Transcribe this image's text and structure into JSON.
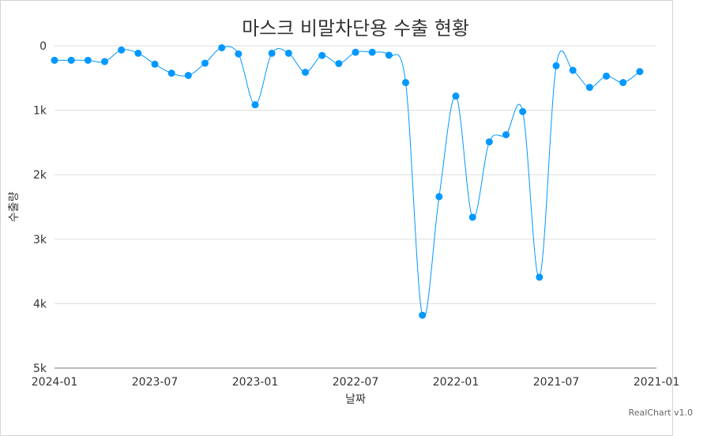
{
  "chart_data": {
    "type": "line",
    "title": "마스크 비말차단용 수출 현황",
    "xlabel": "날짜",
    "ylabel": "수출량",
    "x_tick_labels": [
      "2024-01",
      "2023-07",
      "2023-01",
      "2022-07",
      "2022-01",
      "2021-07",
      "2021-01"
    ],
    "y_tick_labels": [
      "0",
      "1k",
      "2k",
      "3k",
      "4k",
      "5k"
    ],
    "ylim": [
      0,
      5000
    ],
    "y_reversed": true,
    "x_reversed": true,
    "x_range": [
      "2024-01",
      "2021-01"
    ],
    "grid": true,
    "legend": "none",
    "series": [
      {
        "color": "#0098ff",
        "points": [
          {
            "x": "2024-01",
            "y": 225
          },
          {
            "x": "2023-12",
            "y": 225
          },
          {
            "x": "2023-11",
            "y": 225
          },
          {
            "x": "2023-10",
            "y": 245
          },
          {
            "x": "2023-09",
            "y": 65
          },
          {
            "x": "2023-08",
            "y": 115
          },
          {
            "x": "2023-07",
            "y": 285
          },
          {
            "x": "2023-06",
            "y": 425
          },
          {
            "x": "2023-05",
            "y": 460
          },
          {
            "x": "2023-04",
            "y": 270
          },
          {
            "x": "2023-03",
            "y": 30
          },
          {
            "x": "2023-02",
            "y": 125
          },
          {
            "x": "2023-01",
            "y": 915
          },
          {
            "x": "2022-12",
            "y": 115
          },
          {
            "x": "2022-11",
            "y": 115
          },
          {
            "x": "2022-10",
            "y": 410
          },
          {
            "x": "2022-09",
            "y": 150
          },
          {
            "x": "2022-08",
            "y": 275
          },
          {
            "x": "2022-07",
            "y": 100
          },
          {
            "x": "2022-06",
            "y": 100
          },
          {
            "x": "2022-05",
            "y": 145
          },
          {
            "x": "2022-04",
            "y": 570
          },
          {
            "x": "2022-03",
            "y": 4180
          },
          {
            "x": "2022-02",
            "y": 2340
          },
          {
            "x": "2022-01",
            "y": 780
          },
          {
            "x": "2021-12",
            "y": 2660
          },
          {
            "x": "2021-11",
            "y": 1490
          },
          {
            "x": "2021-10",
            "y": 1380
          },
          {
            "x": "2021-09",
            "y": 1020
          },
          {
            "x": "2021-08",
            "y": 3590
          },
          {
            "x": "2021-07",
            "y": 310
          },
          {
            "x": "2021-06",
            "y": 380
          },
          {
            "x": "2021-05",
            "y": 645
          },
          {
            "x": "2021-04",
            "y": 470
          },
          {
            "x": "2021-03",
            "y": 570
          },
          {
            "x": "2021-02",
            "y": 400
          }
        ]
      }
    ]
  },
  "footer": {
    "credit": "RealChart v1.0"
  }
}
